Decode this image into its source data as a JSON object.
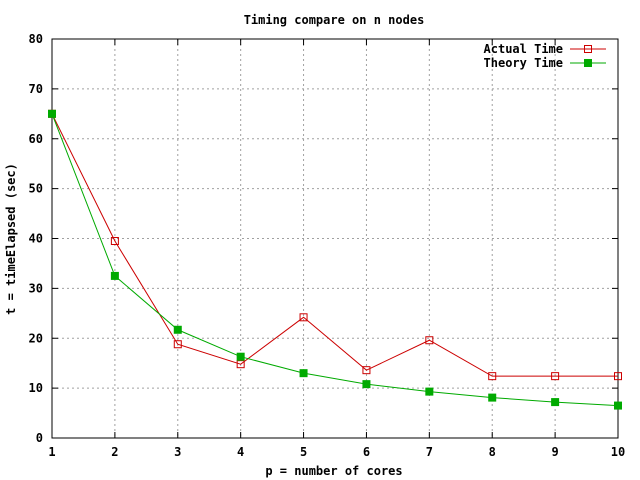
{
  "chart_data": {
    "type": "line",
    "title": "Timing compare on n nodes",
    "xlabel": "p = number of cores",
    "ylabel": "t = timeElapsed (sec)",
    "xlim": [
      1,
      10
    ],
    "ylim": [
      0,
      80
    ],
    "x_ticks": [
      1,
      2,
      3,
      4,
      5,
      6,
      7,
      8,
      9,
      10
    ],
    "y_ticks": [
      0,
      10,
      20,
      30,
      40,
      50,
      60,
      70,
      80
    ],
    "grid": true,
    "legend_position": "top-right",
    "x": [
      1,
      2,
      3,
      4,
      5,
      6,
      7,
      8,
      9,
      10
    ],
    "series": [
      {
        "name": "Actual Time",
        "color": "#cc0000",
        "marker": "open-square",
        "values": [
          65.0,
          39.5,
          18.8,
          14.8,
          24.2,
          13.6,
          19.6,
          12.4,
          12.4,
          12.4
        ]
      },
      {
        "name": "Theory Time",
        "color": "#00aa00",
        "marker": "filled-square",
        "values": [
          65.0,
          32.5,
          21.7,
          16.3,
          13.0,
          10.8,
          9.3,
          8.1,
          7.2,
          6.5
        ]
      }
    ]
  }
}
